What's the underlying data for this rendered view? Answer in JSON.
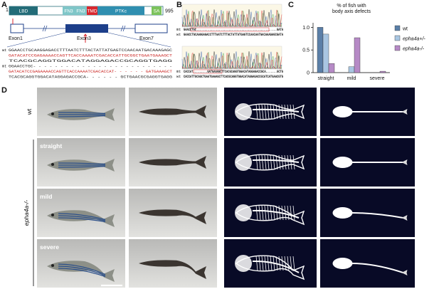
{
  "panel_a": {
    "label": "A",
    "protein": {
      "start": "1",
      "end": "995",
      "domains": [
        "LBD",
        "FN3",
        "FN3",
        "TMD",
        "PTKc",
        "SA"
      ]
    },
    "exons": [
      "Exon1",
      "Exon3",
      "Exon7"
    ],
    "sequences": [
      {
        "tag": "wt",
        "lines": [
          "GGAACCTGCAAGGAGACCTTTAATCTTTACTATTATGAGTCCAACAATGACAAAGAGC",
          "GATACATCCGAGAAAACCAGTTCACCAAAATCGACACCATTGCGGCTGAATGAAAGCT",
          "TCACGCAGGTGGACATAGGAGACCGCAGGTGAGG"
        ]
      },
      {
        "tag": "mt",
        "lines": [
          "GGAACCTGC- - - - - - - - - - - - - - - - - - - - - - - - - -",
          "GATACATCCGAGAAAACCAGTTCACCAAAATCGACACCAT- - - - - - GATGAAAGCT",
          "TCACGCAGGTGGACATAGGAGACCGCA- - - - - - GCTGAACGCGAGGTGAGG"
        ]
      }
    ]
  },
  "panel_b": {
    "label": "B",
    "traces": [
      [
        {
          "tag": "mt",
          "seq": "GAACCTGC..................................................GATA"
        },
        {
          "tag": "wt",
          "seq": "GAACCTGCAAGGAGACCTTTAATCTTTACTATTATGAGTCCAACAATGACAAAGAGCGATA"
        }
      ],
      [
        {
          "tag": "mt",
          "seq": "CACCAT.........GATGAAAGCTTCACGCAGGTGGACATAGGAGACCGCA.......GCTG"
        },
        {
          "tag": "wt",
          "seq": "CACCATTGCGGCTGAATGAAAGCTTCACGCAGGTGGACATAGGAGACCGCATCATGAACGTG"
        }
      ]
    ]
  },
  "chart_data": {
    "type": "bar",
    "label": "C",
    "title": [
      "% of fish with",
      "body axis defects"
    ],
    "categories": [
      "straight",
      "mild",
      "severe"
    ],
    "series": [
      {
        "name": "wt",
        "color": "#5b7fa8",
        "values": [
          1.0,
          0,
          0
        ]
      },
      {
        "name": "epha4a+/-",
        "color": "#a9c6e2",
        "values": [
          0.85,
          0.13,
          0
        ]
      },
      {
        "name": "epha4a-/-",
        "color": "#b68ac6",
        "values": [
          0.2,
          0.77,
          0.03
        ]
      }
    ],
    "ylim": [
      0,
      1.1
    ],
    "yticks": [
      0,
      0.5,
      {
        "value": 1,
        "label": "1.0"
      }
    ],
    "legend": "right"
  },
  "panel_d": {
    "label": "D",
    "rows": [
      "wt",
      "straight",
      "mild",
      "severe"
    ],
    "group": "epha4a-/-"
  }
}
